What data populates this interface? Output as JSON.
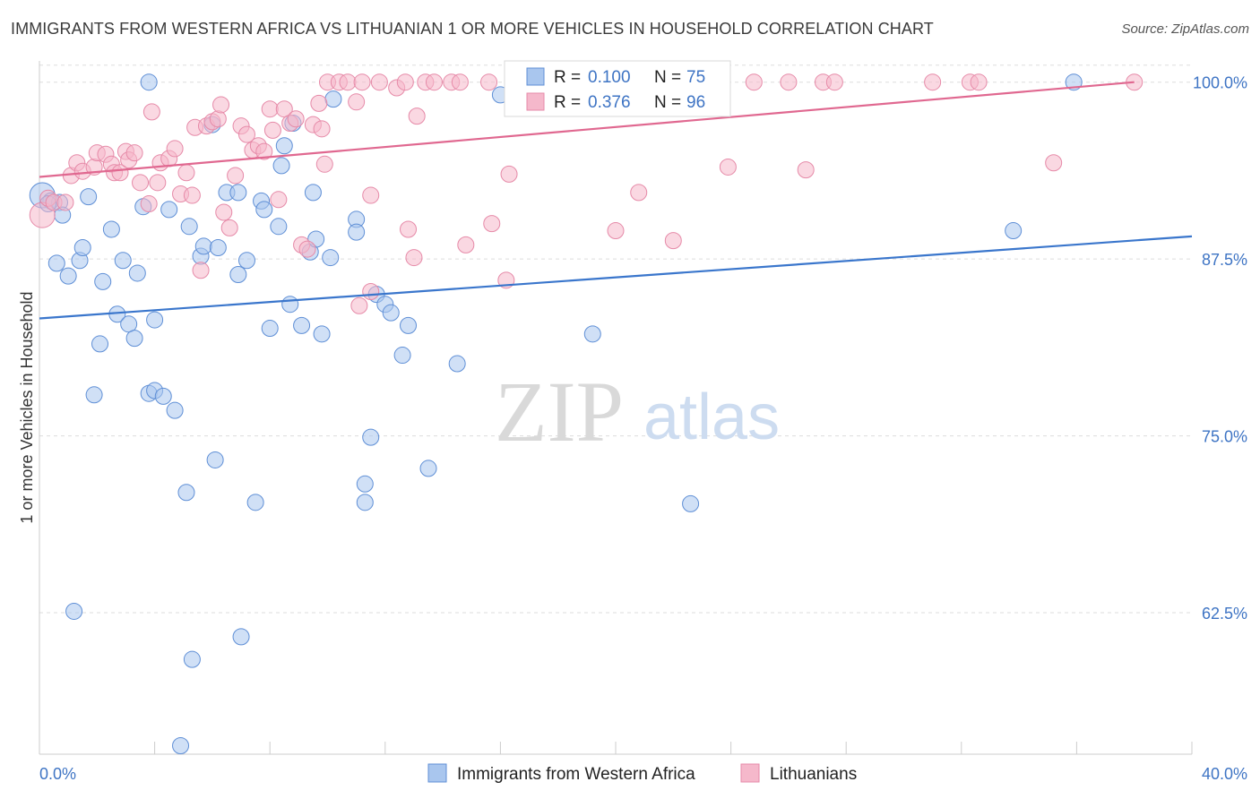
{
  "title": "IMMIGRANTS FROM WESTERN AFRICA VS LITHUANIAN 1 OR MORE VEHICLES IN HOUSEHOLD CORRELATION CHART",
  "source": "Source: ZipAtlas.com",
  "watermark": {
    "zip": "ZIP",
    "atlas": "atlas"
  },
  "legend": {
    "r_label": "R =",
    "n_label": "N =",
    "series1": {
      "r": "0.100",
      "n": "75"
    },
    "series2": {
      "r": "0.376",
      "n": "96"
    }
  },
  "colors": {
    "blue_fill": "#a9c6ee",
    "blue_stroke": "#5f8fd6",
    "blue_line": "#3a76cc",
    "pink_fill": "#f5b8cb",
    "pink_stroke": "#e68aa8",
    "pink_line": "#e06890",
    "grid": "#dddddd",
    "axis_text": "#3e74c4"
  },
  "chart_data": {
    "type": "scatter",
    "title": "IMMIGRANTS FROM WESTERN AFRICA VS LITHUANIAN 1 OR MORE VEHICLES IN HOUSEHOLD CORRELATION CHART",
    "xlabel": "",
    "ylabel": "1 or more Vehicles in Household",
    "xlim": [
      0,
      40
    ],
    "ylim": [
      52.5,
      101.5
    ],
    "x_tick_labels": [
      "0.0%",
      "40.0%"
    ],
    "y_ticks": [
      100.0,
      87.5,
      75.0,
      62.5
    ],
    "y_tick_labels": [
      "100.0%",
      "87.5%",
      "75.0%",
      "62.5%"
    ],
    "grid": true,
    "legend_position": "bottom",
    "series": [
      {
        "name": "Immigrants from Western Africa",
        "color": "#a9c6ee",
        "trend": {
          "x": [
            0,
            40
          ],
          "y": [
            83.3,
            89.1
          ]
        },
        "points": [
          [
            0.1,
            92.0
          ],
          [
            0.4,
            91.6
          ],
          [
            0.7,
            91.5
          ],
          [
            0.8,
            90.6
          ],
          [
            0.6,
            87.2
          ],
          [
            1.0,
            86.3
          ],
          [
            1.4,
            87.4
          ],
          [
            1.5,
            88.3
          ],
          [
            1.7,
            91.9
          ],
          [
            2.2,
            85.9
          ],
          [
            2.5,
            89.6
          ],
          [
            2.7,
            83.6
          ],
          [
            2.9,
            87.4
          ],
          [
            3.1,
            82.9
          ],
          [
            3.3,
            81.9
          ],
          [
            3.4,
            86.5
          ],
          [
            2.1,
            81.5
          ],
          [
            1.9,
            77.9
          ],
          [
            3.6,
            91.2
          ],
          [
            3.8,
            78.0
          ],
          [
            4.0,
            78.2
          ],
          [
            4.0,
            83.2
          ],
          [
            4.3,
            77.8
          ],
          [
            4.5,
            91.0
          ],
          [
            4.7,
            76.8
          ],
          [
            5.1,
            71.0
          ],
          [
            5.2,
            89.8
          ],
          [
            5.6,
            87.7
          ],
          [
            5.7,
            88.4
          ],
          [
            6.0,
            97.0
          ],
          [
            6.1,
            73.3
          ],
          [
            6.2,
            88.3
          ],
          [
            6.5,
            92.2
          ],
          [
            6.9,
            92.2
          ],
          [
            6.9,
            86.4
          ],
          [
            7.0,
            60.8
          ],
          [
            7.2,
            87.4
          ],
          [
            7.5,
            70.3
          ],
          [
            7.7,
            91.6
          ],
          [
            7.8,
            91.0
          ],
          [
            8.0,
            82.6
          ],
          [
            8.3,
            89.8
          ],
          [
            8.4,
            94.1
          ],
          [
            8.5,
            95.5
          ],
          [
            8.7,
            84.3
          ],
          [
            8.8,
            97.1
          ],
          [
            9.1,
            82.8
          ],
          [
            9.4,
            88.0
          ],
          [
            9.5,
            92.2
          ],
          [
            9.6,
            88.9
          ],
          [
            9.8,
            82.2
          ],
          [
            10.1,
            87.6
          ],
          [
            10.2,
            98.8
          ],
          [
            11.0,
            90.3
          ],
          [
            11.0,
            89.4
          ],
          [
            11.3,
            71.6
          ],
          [
            11.3,
            70.3
          ],
          [
            11.5,
            74.9
          ],
          [
            11.7,
            85.0
          ],
          [
            12.0,
            84.3
          ],
          [
            12.2,
            83.7
          ],
          [
            12.6,
            80.7
          ],
          [
            12.8,
            82.8
          ],
          [
            13.5,
            72.7
          ],
          [
            14.5,
            80.1
          ],
          [
            16.0,
            99.1
          ],
          [
            19.2,
            82.2
          ],
          [
            22.6,
            70.2
          ],
          [
            33.8,
            89.5
          ],
          [
            35.9,
            100.0
          ],
          [
            1.2,
            62.6
          ],
          [
            5.3,
            59.2
          ],
          [
            4.9,
            53.1
          ],
          [
            3.8,
            100.0
          ],
          [
            0.3,
            91.4
          ]
        ]
      },
      {
        "name": "Lithuanians",
        "color": "#f5b8cb",
        "trend": {
          "x": [
            0,
            38
          ],
          "y": [
            93.3,
            100.0
          ]
        },
        "points": [
          [
            0.1,
            90.6
          ],
          [
            0.3,
            91.8
          ],
          [
            0.5,
            91.5
          ],
          [
            0.9,
            91.5
          ],
          [
            1.1,
            93.4
          ],
          [
            1.3,
            94.3
          ],
          [
            1.5,
            93.7
          ],
          [
            1.9,
            94.0
          ],
          [
            2.0,
            95.0
          ],
          [
            2.3,
            94.9
          ],
          [
            2.5,
            94.2
          ],
          [
            2.6,
            93.6
          ],
          [
            2.8,
            93.6
          ],
          [
            3.0,
            95.1
          ],
          [
            3.1,
            94.5
          ],
          [
            3.3,
            95.0
          ],
          [
            3.5,
            92.9
          ],
          [
            3.8,
            91.4
          ],
          [
            3.9,
            97.9
          ],
          [
            4.1,
            92.9
          ],
          [
            4.2,
            94.3
          ],
          [
            4.5,
            94.6
          ],
          [
            4.7,
            95.3
          ],
          [
            4.9,
            92.1
          ],
          [
            5.1,
            93.6
          ],
          [
            5.3,
            92.0
          ],
          [
            5.4,
            96.8
          ],
          [
            5.6,
            86.7
          ],
          [
            5.8,
            96.9
          ],
          [
            6.0,
            97.2
          ],
          [
            6.2,
            97.4
          ],
          [
            6.3,
            98.4
          ],
          [
            6.4,
            90.8
          ],
          [
            6.6,
            89.7
          ],
          [
            6.8,
            93.4
          ],
          [
            7.0,
            96.9
          ],
          [
            7.2,
            96.3
          ],
          [
            7.4,
            95.2
          ],
          [
            7.6,
            95.5
          ],
          [
            7.8,
            95.1
          ],
          [
            8.0,
            98.1
          ],
          [
            8.1,
            96.6
          ],
          [
            8.3,
            91.7
          ],
          [
            8.5,
            98.1
          ],
          [
            8.7,
            97.1
          ],
          [
            8.9,
            97.4
          ],
          [
            9.1,
            88.5
          ],
          [
            9.3,
            88.2
          ],
          [
            9.5,
            97.0
          ],
          [
            9.7,
            98.5
          ],
          [
            9.8,
            96.7
          ],
          [
            9.9,
            94.2
          ],
          [
            10.0,
            100.0
          ],
          [
            10.4,
            100.0
          ],
          [
            10.7,
            100.0
          ],
          [
            11.0,
            98.6
          ],
          [
            11.2,
            100.0
          ],
          [
            11.5,
            92.0
          ],
          [
            11.1,
            84.2
          ],
          [
            11.5,
            85.2
          ],
          [
            11.8,
            100.0
          ],
          [
            12.4,
            99.6
          ],
          [
            12.7,
            100.0
          ],
          [
            12.8,
            89.6
          ],
          [
            13.0,
            87.6
          ],
          [
            13.1,
            97.6
          ],
          [
            13.4,
            100.0
          ],
          [
            13.7,
            100.0
          ],
          [
            14.3,
            100.0
          ],
          [
            14.6,
            100.0
          ],
          [
            14.8,
            88.5
          ],
          [
            15.6,
            100.0
          ],
          [
            15.7,
            90.0
          ],
          [
            16.2,
            86.0
          ],
          [
            16.3,
            93.5
          ],
          [
            17.2,
            100.0
          ],
          [
            18.0,
            100.0
          ],
          [
            19.4,
            100.0
          ],
          [
            20.0,
            89.5
          ],
          [
            20.8,
            92.2
          ],
          [
            21.5,
            100.0
          ],
          [
            22.0,
            88.8
          ],
          [
            22.5,
            100.0
          ],
          [
            23.0,
            100.0
          ],
          [
            23.9,
            94.0
          ],
          [
            24.8,
            100.0
          ],
          [
            26.0,
            100.0
          ],
          [
            26.6,
            93.8
          ],
          [
            27.2,
            100.0
          ],
          [
            27.6,
            100.0
          ],
          [
            31.0,
            100.0
          ],
          [
            32.3,
            100.0
          ],
          [
            32.6,
            100.0
          ],
          [
            35.2,
            94.3
          ],
          [
            38.0,
            100.0
          ],
          [
            20.4,
            100.0
          ]
        ]
      }
    ]
  }
}
